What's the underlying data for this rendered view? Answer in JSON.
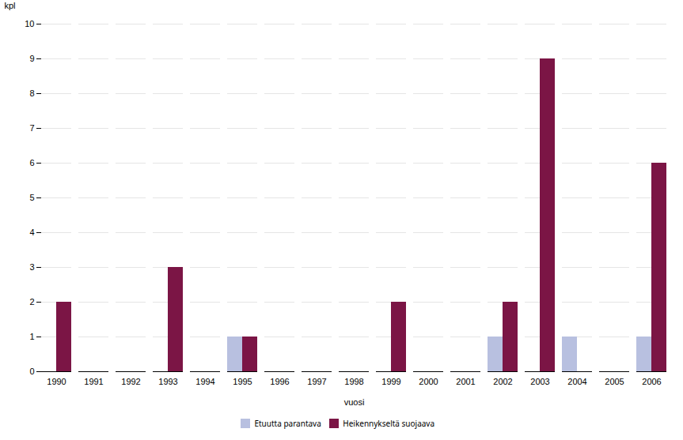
{
  "chart_data": {
    "type": "bar",
    "xlabel": "vuosi",
    "ylabel": "kpl",
    "categories": [
      "1990",
      "1991",
      "1992",
      "1993",
      "1994",
      "1995",
      "1996",
      "1997",
      "1998",
      "1999",
      "2000",
      "2001",
      "2002",
      "2003",
      "2004",
      "2005",
      "2006"
    ],
    "series": [
      {
        "name": "Etuutta parantava",
        "color": "#b8c0e0",
        "values": [
          0,
          0,
          0,
          0,
          0,
          1,
          0,
          0,
          0,
          0,
          0,
          0,
          1,
          0,
          1,
          0,
          1
        ]
      },
      {
        "name": "Heikennykseltä suojaava",
        "color": "#7b1545",
        "values": [
          2,
          0,
          0,
          3,
          0,
          1,
          0,
          0,
          0,
          2,
          0,
          0,
          2,
          9,
          0,
          0,
          6
        ]
      }
    ],
    "ylim": [
      0,
      10
    ],
    "yticks": [
      0,
      1,
      2,
      3,
      4,
      5,
      6,
      7,
      8,
      9,
      10
    ],
    "grid": true,
    "legend": "bottom"
  }
}
